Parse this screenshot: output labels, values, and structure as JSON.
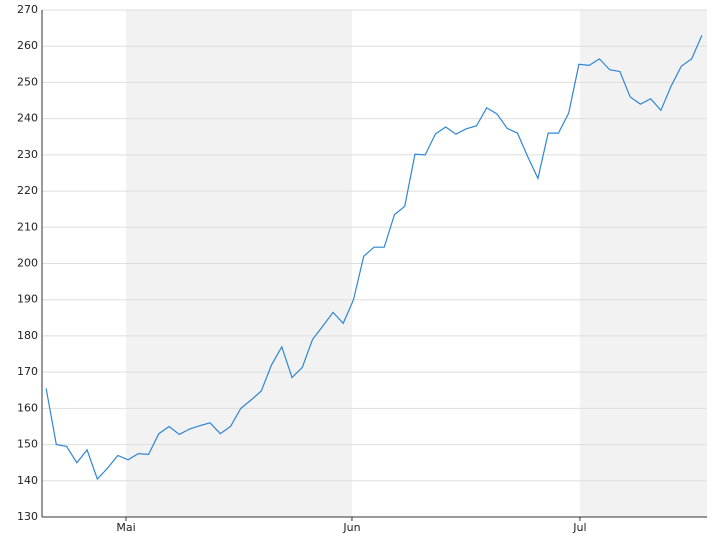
{
  "chart_data": {
    "type": "line",
    "categories": [
      null,
      null,
      null,
      null,
      null,
      null,
      null,
      null,
      null,
      null,
      null,
      null,
      null,
      null,
      null,
      null,
      null,
      null,
      null,
      null,
      null,
      null,
      null,
      null,
      null,
      null,
      null,
      null,
      null,
      null,
      null,
      null,
      null,
      null,
      null,
      null,
      null,
      null,
      null,
      null,
      null,
      null,
      null,
      null,
      null,
      null,
      null,
      null,
      null,
      null,
      null,
      null,
      null,
      null,
      null,
      null,
      null,
      null,
      null,
      null,
      null,
      null,
      null,
      null,
      null
    ],
    "series": [
      {
        "color": "#2f86d6",
        "values": [
          165.5,
          150,
          149.5,
          145,
          148.5,
          140.5,
          143.5,
          147,
          145.8,
          147.5,
          147.3,
          153,
          155,
          152.8,
          154.3,
          155.2,
          156,
          153,
          155,
          160,
          162.3,
          164.8,
          172,
          177,
          168.5,
          171.3,
          179,
          182.7,
          186.5,
          183.5,
          190,
          202,
          204.5,
          204.5,
          213.5,
          215.8,
          230.2,
          230,
          235.8,
          237.7,
          235.7,
          237.2,
          238,
          243,
          241.3,
          237.3,
          236,
          229.5,
          223.5,
          236,
          236,
          241.5,
          255,
          254.7,
          256.5,
          253.5,
          253,
          246,
          244,
          245.5,
          242.3,
          249,
          254.5,
          256.5,
          263
        ]
      }
    ],
    "xlim": [
      -0.4,
      64.5
    ],
    "xticks": [
      {
        "value": 7.8,
        "label": "Mai"
      },
      {
        "value": 29.85,
        "label": "Jun"
      },
      {
        "value": 52.1,
        "label": "Jul"
      }
    ],
    "ylim": [
      130,
      270
    ],
    "yticks": [
      130,
      140,
      150,
      160,
      170,
      180,
      190,
      200,
      210,
      220,
      230,
      240,
      250,
      260,
      270
    ],
    "grid": true
  }
}
